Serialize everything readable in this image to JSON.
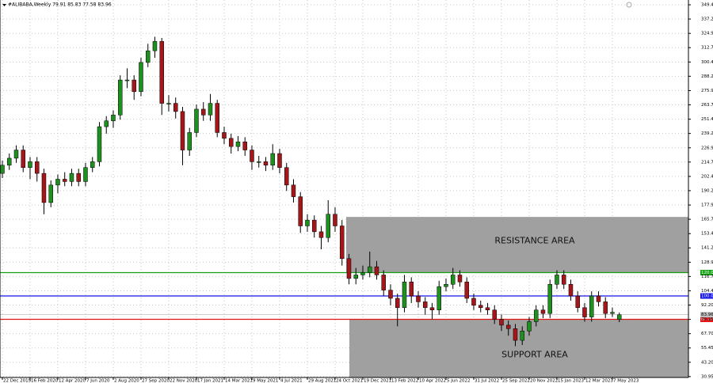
{
  "chart_data": {
    "type": "candlestick",
    "title": "#ALIBABA,Weekly  79.91 85.83 77.58 83.96",
    "categories": [
      "22 Dec 2019",
      null,
      null,
      null,
      "16 Feb 2020",
      null,
      null,
      null,
      "12 Apr 2020",
      null,
      null,
      null,
      "7 Jun 2020",
      null,
      null,
      null,
      "2 Aug 2020",
      null,
      null,
      null,
      "27 Sep 2020",
      null,
      null,
      null,
      "22 Nov 2020",
      null,
      null,
      null,
      "17 Jan 2021",
      null,
      null,
      null,
      "14 Mar 2021",
      null,
      null,
      null,
      "9 May 2021",
      null,
      null,
      null,
      "4 Jul 2021",
      null,
      null,
      null,
      "29 Aug 2021",
      null,
      null,
      null,
      "24 Oct 2021",
      null,
      null,
      null,
      "19 Dec 2021",
      null,
      null,
      null,
      "13 Feb 2022",
      null,
      null,
      null,
      "10 Apr 2022",
      null,
      null,
      null,
      "5 Jun 2022",
      null,
      null,
      null,
      "31 Jul 2022",
      null,
      null,
      null,
      "25 Sep 2022",
      null,
      null,
      null,
      "20 Nov 2022",
      null,
      null,
      null,
      "15 Jan 2023",
      null,
      null,
      null,
      "12 Mar 2023",
      null,
      null,
      null,
      "7 May 2023",
      null
    ],
    "ohlc": [
      [
        205,
        216,
        201,
        212
      ],
      [
        212,
        222,
        208,
        218
      ],
      [
        218,
        229,
        214,
        225
      ],
      [
        225,
        229,
        206,
        210
      ],
      [
        210,
        219,
        200,
        215
      ],
      [
        215,
        219,
        198,
        205
      ],
      [
        205,
        209,
        170,
        180
      ],
      [
        180,
        199,
        176,
        195
      ],
      [
        195,
        204,
        188,
        200
      ],
      [
        200,
        206,
        194,
        198
      ],
      [
        198,
        209,
        194,
        205
      ],
      [
        205,
        209,
        194,
        198
      ],
      [
        198,
        214,
        194,
        210
      ],
      [
        210,
        219,
        206,
        215
      ],
      [
        215,
        249,
        211,
        245
      ],
      [
        245,
        254,
        239,
        250
      ],
      [
        250,
        259,
        244,
        255
      ],
      [
        255,
        289,
        251,
        285
      ],
      [
        285,
        295,
        278,
        285
      ],
      [
        285,
        289,
        268,
        275
      ],
      [
        275,
        304,
        271,
        300
      ],
      [
        300,
        316,
        296,
        310
      ],
      [
        310,
        322,
        304,
        318
      ],
      [
        318,
        321,
        255,
        265
      ],
      [
        265,
        272,
        258,
        265
      ],
      [
        265,
        270,
        252,
        258
      ],
      [
        258,
        262,
        212,
        225
      ],
      [
        225,
        244,
        220,
        240
      ],
      [
        240,
        264,
        236,
        260
      ],
      [
        260,
        266,
        250,
        255
      ],
      [
        255,
        273,
        250,
        265
      ],
      [
        265,
        268,
        236,
        240
      ],
      [
        240,
        245,
        230,
        235
      ],
      [
        235,
        239,
        222,
        228
      ],
      [
        228,
        237,
        224,
        232
      ],
      [
        232,
        236,
        220,
        225
      ],
      [
        225,
        229,
        208,
        215
      ],
      [
        215,
        220,
        210,
        215
      ],
      [
        215,
        219,
        207,
        212
      ],
      [
        212,
        230,
        208,
        222
      ],
      [
        222,
        226,
        205,
        210
      ],
      [
        210,
        214,
        190,
        195
      ],
      [
        195,
        200,
        180,
        185
      ],
      [
        185,
        189,
        154,
        160
      ],
      [
        160,
        170,
        155,
        165
      ],
      [
        165,
        169,
        150,
        155
      ],
      [
        155,
        160,
        140,
        150
      ],
      [
        150,
        182,
        146,
        170
      ],
      [
        170,
        176,
        155,
        160
      ],
      [
        160,
        165,
        126,
        132
      ],
      [
        132,
        136,
        110,
        115
      ],
      [
        115,
        124,
        110,
        118
      ],
      [
        118,
        126,
        114,
        120
      ],
      [
        120,
        138,
        116,
        125
      ],
      [
        125,
        130,
        114,
        118
      ],
      [
        118,
        122,
        100,
        105
      ],
      [
        105,
        110,
        92,
        98
      ],
      [
        98,
        102,
        74,
        90
      ],
      [
        90,
        118,
        86,
        112
      ],
      [
        112,
        116,
        94,
        100
      ],
      [
        100,
        104,
        90,
        95
      ],
      [
        95,
        99,
        84,
        90
      ],
      [
        90,
        94,
        80,
        88
      ],
      [
        88,
        113,
        84,
        108
      ],
      [
        108,
        115,
        104,
        110
      ],
      [
        110,
        124,
        106,
        118
      ],
      [
        118,
        122,
        108,
        112
      ],
      [
        112,
        116,
        94,
        98
      ],
      [
        98,
        102,
        88,
        92
      ],
      [
        92,
        96,
        86,
        90
      ],
      [
        90,
        94,
        84,
        88
      ],
      [
        88,
        92,
        76,
        80
      ],
      [
        80,
        84,
        70,
        75
      ],
      [
        75,
        79,
        66,
        72
      ],
      [
        72,
        76,
        57,
        62
      ],
      [
        62,
        74,
        58,
        70
      ],
      [
        70,
        82,
        66,
        78
      ],
      [
        78,
        92,
        74,
        88
      ],
      [
        88,
        92,
        81,
        85
      ],
      [
        85,
        114,
        81,
        110
      ],
      [
        110,
        122,
        106,
        118
      ],
      [
        118,
        122,
        106,
        110
      ],
      [
        110,
        114,
        96,
        100
      ],
      [
        100,
        104,
        86,
        90
      ],
      [
        90,
        94,
        78,
        82
      ],
      [
        82,
        104,
        78,
        100
      ],
      [
        100,
        104,
        91,
        95
      ],
      [
        95,
        99,
        81,
        85
      ],
      [
        85,
        90,
        82,
        86
      ],
      [
        79.91,
        85.83,
        77.58,
        83.96
      ]
    ],
    "up_color": "#1f8f1f",
    "down_color": "#a3161a",
    "ylim": [
      30.2,
      353.5
    ],
    "yticks": [
      349.4,
      337.2,
      324.9,
      312.7,
      300.4,
      288.2,
      275.9,
      263.7,
      251.4,
      239.2,
      226.9,
      214.7,
      202.4,
      190.2,
      177.9,
      165.7,
      153.4,
      141.2,
      128.9,
      116.7,
      104.4,
      {
        "value": 92.2,
        "label": "92.20"
      },
      79.95,
      {
        "value": 67.7,
        "label": "67.70"
      },
      55.45,
      {
        "value": 43.2,
        "label": "43.20"
      },
      30.95
    ],
    "grid": true,
    "levels": [
      {
        "value": 120,
        "label": "120.0",
        "color": "#12a012"
      },
      {
        "value": 100,
        "label": "100.0",
        "color": "#1414e6"
      },
      {
        "value": 80,
        "label": "80.00",
        "color": "#e61414"
      }
    ],
    "zones": [
      {
        "label": "RESISTANCE AREA",
        "range": [
          120,
          167.7
        ]
      },
      {
        "label": "SUPPORT AREA",
        "range": [
          30.2,
          80
        ]
      }
    ]
  }
}
